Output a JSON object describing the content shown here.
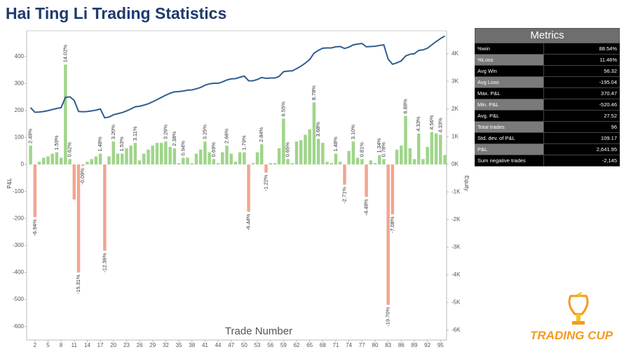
{
  "chart_data": {
    "type": "bar_line",
    "title": "Hai Ting Li Trading Statistics",
    "y_label": "P&L",
    "y2_label": "Equity",
    "x_label": "Trade Number",
    "x": [
      1,
      2,
      3,
      4,
      5,
      6,
      7,
      8,
      9,
      10,
      11,
      12,
      13,
      14,
      15,
      16,
      17,
      18,
      19,
      20,
      21,
      22,
      23,
      24,
      25,
      26,
      27,
      28,
      29,
      30,
      31,
      32,
      33,
      34,
      35,
      36,
      37,
      38,
      39,
      40,
      41,
      42,
      43,
      44,
      45,
      46,
      47,
      48,
      49,
      50,
      51,
      52,
      53,
      54,
      55,
      56,
      57,
      58,
      59,
      60,
      61,
      62,
      63,
      64,
      65,
      66,
      67,
      68,
      69,
      70,
      71,
      72,
      73,
      74,
      75,
      76,
      77,
      78,
      79,
      80,
      81,
      82,
      83,
      84,
      85,
      86,
      87,
      88,
      89,
      90,
      91,
      92,
      93,
      94,
      95,
      96
    ],
    "xlim": [
      0.1,
      96.4
    ],
    "xticks": [
      2,
      5,
      8,
      11,
      14,
      17,
      20,
      23,
      26,
      29,
      32,
      35,
      38,
      41,
      44,
      47,
      50,
      53,
      56,
      59,
      62,
      65,
      68,
      71,
      74,
      77,
      80,
      83,
      86,
      89,
      92,
      95
    ],
    "ylim": [
      -650,
      495
    ],
    "yticks": [
      -600,
      -500,
      -400,
      -300,
      -200,
      -100,
      0,
      100,
      200,
      300,
      400
    ],
    "y2lim": [
      -6360,
      4830
    ],
    "y2ticks": [
      {
        "value": -6000,
        "label": "-6K"
      },
      {
        "value": -5000,
        "label": "-5K"
      },
      {
        "value": -4000,
        "label": "-4K"
      },
      {
        "value": -3000,
        "label": "-3K"
      },
      {
        "value": -2000,
        "label": "-2K"
      },
      {
        "value": -1000,
        "label": "-1K"
      },
      {
        "value": 0,
        "label": "0K"
      },
      {
        "value": 1000,
        "label": "1K"
      },
      {
        "value": 2000,
        "label": "2K"
      },
      {
        "value": 3000,
        "label": "3K"
      },
      {
        "value": 4000,
        "label": "4K"
      }
    ],
    "series": [
      {
        "color": "#9fd58a",
        "negative_color": "#f2a58f",
        "values": [
          70,
          -195,
          10,
          25,
          30,
          40,
          45,
          25,
          370,
          20,
          -130,
          -400,
          -5,
          10,
          20,
          30,
          40,
          -320,
          30,
          85,
          40,
          40,
          60,
          70,
          80,
          15,
          40,
          55,
          70,
          80,
          80,
          85,
          65,
          60,
          5,
          25,
          25,
          5,
          40,
          55,
          85,
          45,
          20,
          5,
          45,
          70,
          40,
          10,
          45,
          45,
          -175,
          5,
          45,
          75,
          -30,
          5,
          5,
          60,
          170,
          20,
          5,
          85,
          90,
          110,
          130,
          230,
          95,
          80,
          10,
          5,
          40,
          10,
          -75,
          50,
          85,
          25,
          20,
          -120,
          15,
          5,
          35,
          20,
          -520,
          -185,
          55,
          70,
          180,
          60,
          20,
          115,
          20,
          65,
          120,
          115,
          110,
          35
        ],
        "annotations": [
          "2.49%",
          "-6.94%",
          null,
          null,
          null,
          null,
          "1.59%",
          null,
          "14.02%",
          "0.62%",
          null,
          "-15.31%",
          "-0.09%",
          null,
          null,
          null,
          "1.48%",
          "-12.36%",
          null,
          "3.20%",
          null,
          "1.53%",
          null,
          null,
          "3.11%",
          null,
          null,
          null,
          null,
          null,
          null,
          "3.26%",
          null,
          "2.38%",
          null,
          "0.94%",
          null,
          null,
          null,
          null,
          "3.25%",
          null,
          "0.69%",
          null,
          null,
          "2.66%",
          null,
          null,
          null,
          "1.79%",
          "-6.44%",
          null,
          null,
          "2.84%",
          "-1.22%",
          null,
          null,
          null,
          "6.55%",
          "0.65%",
          null,
          null,
          null,
          null,
          null,
          "8.78%",
          "3.68%",
          null,
          null,
          null,
          "1.48%",
          null,
          "-2.71%",
          null,
          "3.10%",
          null,
          "0.81%",
          "-4.48%",
          null,
          null,
          "1.34%",
          "0.78%",
          "-19.70%",
          "-7.08%",
          null,
          null,
          "6.88%",
          null,
          null,
          "4.33%",
          null,
          null,
          "4.56%",
          null,
          "4.33%",
          null
        ]
      },
      {
        "axis": "y2",
        "color": "#2f5d8f",
        "values": [
          2050,
          1880,
          1890,
          1910,
          1940,
          1980,
          2020,
          2050,
          2420,
          2440,
          2310,
          1910,
          1900,
          1910,
          1930,
          1960,
          2000,
          1680,
          1710,
          1790,
          1830,
          1870,
          1930,
          2000,
          2080,
          2100,
          2140,
          2190,
          2260,
          2340,
          2420,
          2500,
          2570,
          2620,
          2630,
          2650,
          2680,
          2690,
          2730,
          2780,
          2860,
          2910,
          2930,
          2930,
          2980,
          3050,
          3090,
          3100,
          3150,
          3190,
          3020,
          3020,
          3070,
          3140,
          3110,
          3120,
          3120,
          3180,
          3350,
          3370,
          3380,
          3460,
          3550,
          3660,
          3790,
          4020,
          4120,
          4200,
          4210,
          4210,
          4250,
          4260,
          4190,
          4240,
          4320,
          4350,
          4370,
          4250,
          4260,
          4270,
          4300,
          4320,
          3800,
          3620,
          3670,
          3740,
          3920,
          3980,
          4000,
          4120,
          4140,
          4200,
          4320,
          4440,
          4550,
          4640
        ]
      }
    ]
  },
  "metrics": {
    "title": "Metrics",
    "rows": [
      [
        "%win",
        "88.54%"
      ],
      [
        "%Loss",
        "11.46%"
      ],
      [
        "Avg Win",
        "56.32"
      ],
      [
        "Avg Loss",
        "-195.04"
      ],
      [
        "Max. P&L",
        "370.47"
      ],
      [
        "Min. P&L",
        "-520.46"
      ],
      [
        "Avg. P&L",
        "27.52"
      ],
      [
        "Total trades",
        "96"
      ],
      [
        "Std. dev. of P&L",
        "109.17"
      ],
      [
        "P&L",
        "2,641.95"
      ],
      [
        "Sum negative trades",
        "-2,145"
      ]
    ]
  },
  "logo": "TRADING CUP"
}
